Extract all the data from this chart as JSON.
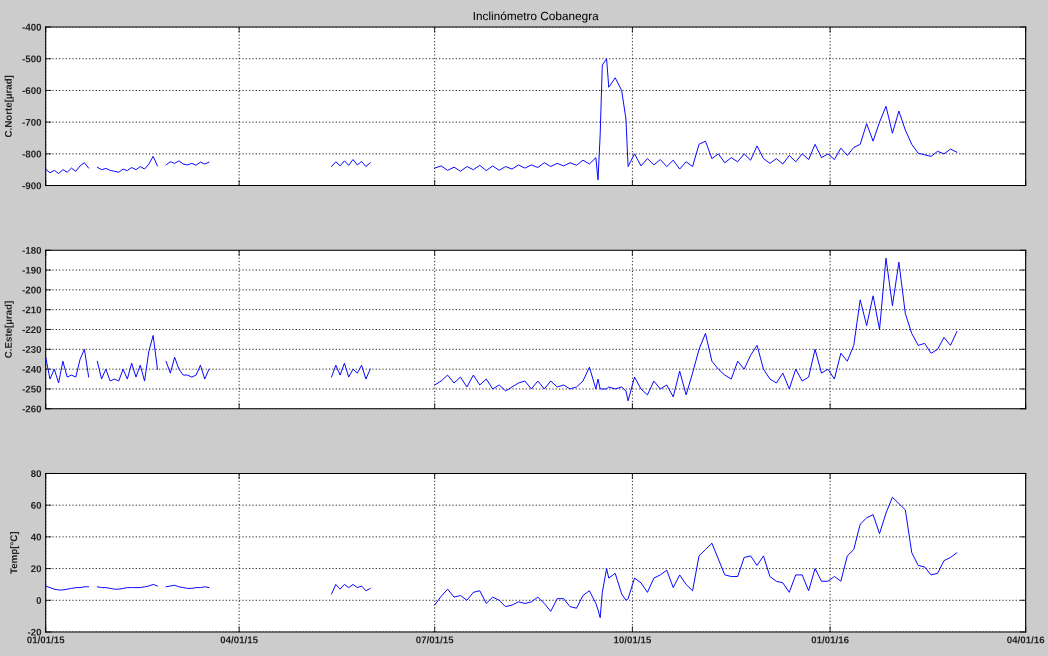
{
  "chart_data": [
    {
      "type": "line",
      "title": "Inclinómetro Cobanegra",
      "ylabel": "C.Norte[µrad]",
      "x": [
        "2015-01-01",
        "2015-01-03",
        "2015-01-05",
        "2015-01-07",
        "2015-01-09",
        "2015-01-11",
        "2015-01-13",
        "2015-01-15",
        "2015-01-17",
        "2015-01-19",
        "2015-01-21",
        "2015-01-23",
        "2015-01-25",
        "2015-01-27",
        "2015-01-29",
        "2015-01-31",
        "2015-02-02",
        "2015-02-04",
        "2015-02-06",
        "2015-02-08",
        "2015-02-10",
        "2015-02-12",
        "2015-02-14",
        "2015-02-16",
        "2015-02-18",
        "2015-02-20",
        "2015-02-22",
        "2015-02-24",
        "2015-02-26",
        "2015-02-28",
        "2015-03-02",
        "2015-03-04",
        "2015-03-06",
        "2015-03-08",
        "2015-03-10",
        "2015-03-12",
        "2015-03-14",
        "2015-03-16",
        "2015-03-18",
        "2015-04-15",
        "2015-05-14",
        "2015-05-16",
        "2015-05-18",
        "2015-05-20",
        "2015-05-22",
        "2015-05-24",
        "2015-05-26",
        "2015-05-28",
        "2015-05-30",
        "2015-06-01",
        "2015-06-15",
        "2015-07-01",
        "2015-07-04",
        "2015-07-07",
        "2015-07-10",
        "2015-07-13",
        "2015-07-16",
        "2015-07-19",
        "2015-07-22",
        "2015-07-25",
        "2015-07-28",
        "2015-07-31",
        "2015-08-03",
        "2015-08-06",
        "2015-08-09",
        "2015-08-12",
        "2015-08-15",
        "2015-08-18",
        "2015-08-21",
        "2015-08-24",
        "2015-08-27",
        "2015-08-30",
        "2015-09-02",
        "2015-09-05",
        "2015-09-08",
        "2015-09-11",
        "2015-09-14",
        "2015-09-15",
        "2015-09-16",
        "2015-09-17",
        "2015-09-19",
        "2015-09-20",
        "2015-09-23",
        "2015-09-26",
        "2015-09-28",
        "2015-09-29",
        "2015-10-02",
        "2015-10-05",
        "2015-10-08",
        "2015-10-11",
        "2015-10-14",
        "2015-10-17",
        "2015-10-20",
        "2015-10-23",
        "2015-10-26",
        "2015-10-29",
        "2015-11-01",
        "2015-11-04",
        "2015-11-07",
        "2015-11-10",
        "2015-11-13",
        "2015-11-16",
        "2015-11-19",
        "2015-11-22",
        "2015-11-25",
        "2015-11-28",
        "2015-12-01",
        "2015-12-04",
        "2015-12-07",
        "2015-12-10",
        "2015-12-13",
        "2015-12-16",
        "2015-12-19",
        "2015-12-22",
        "2015-12-25",
        "2015-12-28",
        "2015-12-31",
        "2016-01-03",
        "2016-01-06",
        "2016-01-09",
        "2016-01-12",
        "2016-01-15",
        "2016-01-18",
        "2016-01-21",
        "2016-01-24",
        "2016-01-27",
        "2016-01-30",
        "2016-02-02",
        "2016-02-05",
        "2016-02-08",
        "2016-02-11",
        "2016-02-14",
        "2016-02-17",
        "2016-02-20",
        "2016-02-23",
        "2016-02-26",
        "2016-02-29"
      ],
      "series": [
        {
          "color": "#0000ff",
          "values": [
            -848,
            -860,
            -852,
            -862,
            -850,
            -858,
            -845,
            -855,
            -838,
            -828,
            -845,
            null,
            -842,
            -850,
            -846,
            -852,
            -855,
            -858,
            -848,
            -853,
            -843,
            -850,
            -840,
            -848,
            -832,
            -808,
            -838,
            null,
            -835,
            -825,
            -830,
            -822,
            -832,
            -835,
            -830,
            -836,
            -826,
            -832,
            -826,
            null,
            -840,
            -825,
            -838,
            -822,
            -836,
            -818,
            -835,
            -824,
            -840,
            -828,
            null,
            -845,
            -838,
            -852,
            -842,
            -855,
            -840,
            -850,
            -836,
            -853,
            -838,
            -852,
            -840,
            -848,
            -835,
            -845,
            -835,
            -843,
            -828,
            -840,
            -830,
            -838,
            -828,
            -836,
            -820,
            -832,
            -812,
            -882,
            -740,
            -520,
            -500,
            -590,
            -560,
            -600,
            -690,
            -840,
            -800,
            -838,
            -815,
            -835,
            -818,
            -840,
            -820,
            -848,
            -825,
            -840,
            -770,
            -760,
            -815,
            -800,
            -828,
            -812,
            -825,
            -800,
            -820,
            -775,
            -815,
            -830,
            -815,
            -832,
            -805,
            -825,
            -800,
            -818,
            -770,
            -812,
            -800,
            -818,
            -782,
            -805,
            -780,
            -770,
            -705,
            -760,
            -700,
            -650,
            -735,
            -665,
            -725,
            -770,
            -798,
            -803,
            -808,
            -792,
            -800,
            -785,
            -795
          ]
        }
      ],
      "xlim": [
        "2015-01-01",
        "2016-04-01"
      ],
      "xticks": [
        {
          "value": "2015-01-01",
          "label": null
        },
        {
          "value": "2015-04-01",
          "label": null
        },
        {
          "value": "2015-07-01",
          "label": null
        },
        {
          "value": "2015-10-01",
          "label": null
        },
        {
          "value": "2016-01-01",
          "label": null
        },
        {
          "value": "2016-04-01",
          "label": null
        }
      ],
      "ylim": [
        -900,
        -400
      ],
      "yticks": [
        -900,
        -800,
        -700,
        -600,
        -500,
        -400
      ],
      "grid": true,
      "tick_labels": "y"
    },
    {
      "type": "line",
      "ylabel": "C.Este[µrad]",
      "x": [
        "2015-01-01",
        "2015-01-03",
        "2015-01-05",
        "2015-01-07",
        "2015-01-09",
        "2015-01-11",
        "2015-01-13",
        "2015-01-15",
        "2015-01-17",
        "2015-01-19",
        "2015-01-21",
        "2015-01-23",
        "2015-01-25",
        "2015-01-27",
        "2015-01-29",
        "2015-01-31",
        "2015-02-02",
        "2015-02-04",
        "2015-02-06",
        "2015-02-08",
        "2015-02-10",
        "2015-02-12",
        "2015-02-14",
        "2015-02-16",
        "2015-02-18",
        "2015-02-20",
        "2015-02-22",
        "2015-02-24",
        "2015-02-26",
        "2015-02-28",
        "2015-03-02",
        "2015-03-04",
        "2015-03-06",
        "2015-03-08",
        "2015-03-10",
        "2015-03-12",
        "2015-03-14",
        "2015-03-16",
        "2015-03-18",
        "2015-04-15",
        "2015-05-14",
        "2015-05-16",
        "2015-05-18",
        "2015-05-20",
        "2015-05-22",
        "2015-05-24",
        "2015-05-26",
        "2015-05-28",
        "2015-05-30",
        "2015-06-01",
        "2015-06-15",
        "2015-07-01",
        "2015-07-04",
        "2015-07-07",
        "2015-07-10",
        "2015-07-13",
        "2015-07-16",
        "2015-07-19",
        "2015-07-22",
        "2015-07-25",
        "2015-07-28",
        "2015-07-31",
        "2015-08-03",
        "2015-08-06",
        "2015-08-09",
        "2015-08-12",
        "2015-08-15",
        "2015-08-18",
        "2015-08-21",
        "2015-08-24",
        "2015-08-27",
        "2015-08-30",
        "2015-09-02",
        "2015-09-05",
        "2015-09-08",
        "2015-09-11",
        "2015-09-14",
        "2015-09-15",
        "2015-09-16",
        "2015-09-17",
        "2015-09-19",
        "2015-09-20",
        "2015-09-23",
        "2015-09-26",
        "2015-09-28",
        "2015-09-29",
        "2015-10-02",
        "2015-10-05",
        "2015-10-08",
        "2015-10-11",
        "2015-10-14",
        "2015-10-17",
        "2015-10-20",
        "2015-10-23",
        "2015-10-26",
        "2015-10-29",
        "2015-11-01",
        "2015-11-04",
        "2015-11-07",
        "2015-11-10",
        "2015-11-13",
        "2015-11-16",
        "2015-11-19",
        "2015-11-22",
        "2015-11-25",
        "2015-11-28",
        "2015-12-01",
        "2015-12-04",
        "2015-12-07",
        "2015-12-10",
        "2015-12-13",
        "2015-12-16",
        "2015-12-19",
        "2015-12-22",
        "2015-12-25",
        "2015-12-28",
        "2015-12-31",
        "2016-01-03",
        "2016-01-06",
        "2016-01-09",
        "2016-01-12",
        "2016-01-15",
        "2016-01-18",
        "2016-01-21",
        "2016-01-24",
        "2016-01-27",
        "2016-01-30",
        "2016-02-02",
        "2016-02-05",
        "2016-02-08",
        "2016-02-11",
        "2016-02-14",
        "2016-02-17",
        "2016-02-20",
        "2016-02-23",
        "2016-02-26",
        "2016-02-29"
      ],
      "series": [
        {
          "color": "#0000ff",
          "values": [
            -234,
            -245,
            -240,
            -247,
            -236,
            -244,
            -243,
            -244,
            -235,
            -230,
            -244,
            null,
            -236,
            -245,
            -240,
            -246,
            -245,
            -246,
            -240,
            -245,
            -237,
            -244,
            -238,
            -246,
            -231,
            -223,
            -240,
            null,
            -236,
            -242,
            -234,
            -240,
            -243,
            -243,
            -244,
            -243,
            -238,
            -245,
            -240,
            null,
            -244,
            -238,
            -243,
            -237,
            -244,
            -240,
            -242,
            -238,
            -245,
            -240,
            null,
            -248,
            -246,
            -243,
            -247,
            -244,
            -249,
            -243,
            -248,
            -245,
            -250,
            -248,
            -251,
            -249,
            -247,
            -246,
            -250,
            -246,
            -250,
            -246,
            -249,
            -248,
            -250,
            -249,
            -246,
            -239,
            -250,
            -245,
            -250,
            -250,
            -250,
            -249,
            -250,
            -249,
            -251,
            -256,
            -244,
            -250,
            -253,
            -246,
            -250,
            -248,
            -254,
            -241,
            -253,
            -242,
            -230,
            -222,
            -236,
            -240,
            -243,
            -245,
            -236,
            -240,
            -233,
            -228,
            -240,
            -245,
            -247,
            -242,
            -250,
            -240,
            -246,
            -244,
            -230,
            -242,
            -240,
            -245,
            -232,
            -236,
            -228,
            -205,
            -218,
            -203,
            -220,
            -184,
            -208,
            -186,
            -212,
            -222,
            -228,
            -227,
            -232,
            -230,
            -224,
            -228,
            -221
          ]
        }
      ],
      "xlim": [
        "2015-01-01",
        "2016-04-01"
      ],
      "xticks": [
        {
          "value": "2015-01-01",
          "label": null
        },
        {
          "value": "2015-04-01",
          "label": null
        },
        {
          "value": "2015-07-01",
          "label": null
        },
        {
          "value": "2015-10-01",
          "label": null
        },
        {
          "value": "2016-01-01",
          "label": null
        },
        {
          "value": "2016-04-01",
          "label": null
        }
      ],
      "ylim": [
        -260,
        -180
      ],
      "yticks": [
        -260,
        -250,
        -240,
        -230,
        -220,
        -210,
        -200,
        -190,
        -180
      ],
      "grid": true,
      "tick_labels": "y"
    },
    {
      "type": "line",
      "ylabel": "Temp[°C]",
      "x": [
        "2015-01-01",
        "2015-01-03",
        "2015-01-05",
        "2015-01-07",
        "2015-01-09",
        "2015-01-11",
        "2015-01-13",
        "2015-01-15",
        "2015-01-17",
        "2015-01-19",
        "2015-01-21",
        "2015-01-23",
        "2015-01-25",
        "2015-01-27",
        "2015-01-29",
        "2015-01-31",
        "2015-02-02",
        "2015-02-04",
        "2015-02-06",
        "2015-02-08",
        "2015-02-10",
        "2015-02-12",
        "2015-02-14",
        "2015-02-16",
        "2015-02-18",
        "2015-02-20",
        "2015-02-22",
        "2015-02-24",
        "2015-02-26",
        "2015-02-28",
        "2015-03-02",
        "2015-03-04",
        "2015-03-06",
        "2015-03-08",
        "2015-03-10",
        "2015-03-12",
        "2015-03-14",
        "2015-03-16",
        "2015-03-18",
        "2015-04-15",
        "2015-05-14",
        "2015-05-16",
        "2015-05-18",
        "2015-05-20",
        "2015-05-22",
        "2015-05-24",
        "2015-05-26",
        "2015-05-28",
        "2015-05-30",
        "2015-06-01",
        "2015-06-15",
        "2015-07-01",
        "2015-07-04",
        "2015-07-07",
        "2015-07-10",
        "2015-07-13",
        "2015-07-16",
        "2015-07-19",
        "2015-07-22",
        "2015-07-25",
        "2015-07-28",
        "2015-07-31",
        "2015-08-03",
        "2015-08-06",
        "2015-08-09",
        "2015-08-12",
        "2015-08-15",
        "2015-08-18",
        "2015-08-21",
        "2015-08-24",
        "2015-08-27",
        "2015-08-30",
        "2015-09-02",
        "2015-09-05",
        "2015-09-08",
        "2015-09-11",
        "2015-09-14",
        "2015-09-15",
        "2015-09-16",
        "2015-09-17",
        "2015-09-19",
        "2015-09-20",
        "2015-09-23",
        "2015-09-26",
        "2015-09-28",
        "2015-09-29",
        "2015-10-02",
        "2015-10-05",
        "2015-10-08",
        "2015-10-11",
        "2015-10-14",
        "2015-10-17",
        "2015-10-20",
        "2015-10-23",
        "2015-10-26",
        "2015-10-29",
        "2015-11-01",
        "2015-11-04",
        "2015-11-07",
        "2015-11-10",
        "2015-11-13",
        "2015-11-16",
        "2015-11-19",
        "2015-11-22",
        "2015-11-25",
        "2015-11-28",
        "2015-12-01",
        "2015-12-04",
        "2015-12-07",
        "2015-12-10",
        "2015-12-13",
        "2015-12-16",
        "2015-12-19",
        "2015-12-22",
        "2015-12-25",
        "2015-12-28",
        "2015-12-31",
        "2016-01-03",
        "2016-01-06",
        "2016-01-09",
        "2016-01-12",
        "2016-01-15",
        "2016-01-18",
        "2016-01-21",
        "2016-01-24",
        "2016-01-27",
        "2016-01-30",
        "2016-02-02",
        "2016-02-05",
        "2016-02-08",
        "2016-02-11",
        "2016-02-14",
        "2016-02-17",
        "2016-02-20",
        "2016-02-23",
        "2016-02-26",
        "2016-02-29"
      ],
      "series": [
        {
          "color": "#0000ff",
          "values": [
            9,
            8,
            7,
            6.5,
            6.5,
            7,
            7.5,
            8,
            8,
            8.5,
            8.5,
            null,
            8.5,
            8,
            8,
            7.5,
            7,
            7,
            7.5,
            8,
            8,
            8,
            8,
            8.5,
            9,
            10,
            9,
            null,
            8.5,
            9,
            9.5,
            8.5,
            8,
            7.5,
            7.5,
            8,
            8,
            8.5,
            8,
            null,
            4,
            10,
            7,
            10,
            8,
            10,
            8,
            9,
            6,
            7.5,
            null,
            -3,
            2.5,
            7,
            2,
            3,
            0,
            5,
            6,
            -2,
            2,
            0,
            -4,
            -3,
            -1,
            -2,
            -1,
            2,
            -2,
            -7,
            1,
            1,
            -4,
            -5,
            3,
            6,
            -2,
            -6,
            -11,
            5,
            20,
            14,
            17,
            4,
            0,
            1,
            14,
            11,
            5,
            14,
            16,
            19,
            8,
            16,
            10,
            6,
            28,
            32,
            36,
            26,
            16,
            15,
            15,
            27,
            28,
            22,
            28,
            15,
            12,
            11,
            5,
            16,
            16,
            6,
            20,
            12,
            12,
            15,
            12,
            28,
            32,
            48,
            52,
            54,
            42,
            55,
            65,
            61,
            57,
            30,
            22,
            21,
            16,
            17,
            25,
            27,
            30
          ]
        }
      ],
      "xlim": [
        "2015-01-01",
        "2016-04-01"
      ],
      "xticks": [
        {
          "value": "2015-01-01",
          "label": "01/01/15"
        },
        {
          "value": "2015-04-01",
          "label": "04/01/15"
        },
        {
          "value": "2015-07-01",
          "label": "07/01/15"
        },
        {
          "value": "2015-10-01",
          "label": "10/01/15"
        },
        {
          "value": "2016-01-01",
          "label": "01/01/16"
        },
        {
          "value": "2016-04-01",
          "label": "04/01/16"
        }
      ],
      "ylim": [
        -20,
        80
      ],
      "yticks": [
        -20,
        0,
        20,
        40,
        60,
        80
      ],
      "grid": true
    }
  ]
}
